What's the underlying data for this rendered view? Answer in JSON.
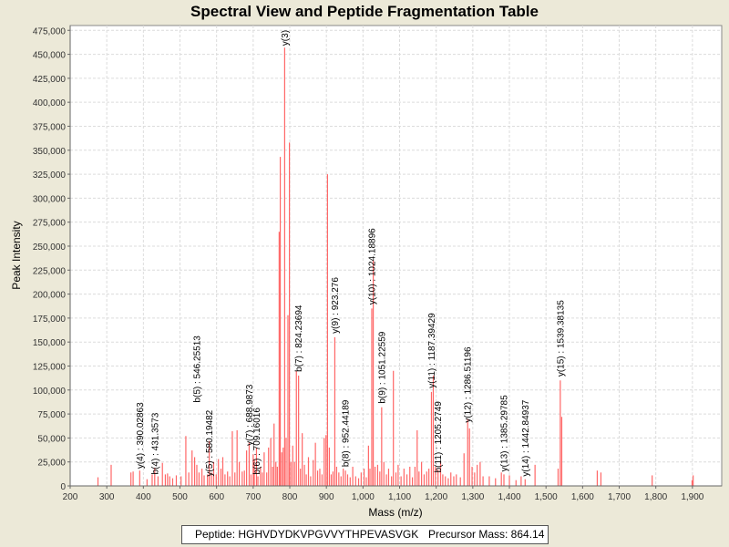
{
  "window": {
    "title": "Spectral View and Peptide Fragmentation Table"
  },
  "info": {
    "peptide_label": "Peptide: HGHVDYDKVPGVVYTHPEVASVGK",
    "precursor_label": "Precursor Mass: 864.14"
  },
  "colors": {
    "peak": "#ff6666",
    "annotation": "#000000",
    "plot_bg": "#ffffff",
    "window_bg": "#ece9d8"
  },
  "chart_data": {
    "type": "bar",
    "title": "Spectral View and Peptide Fragmentation Table",
    "xlabel": "Mass (m/z)",
    "ylabel": "Peak Intensity",
    "xlim": [
      200,
      1980
    ],
    "ylim": [
      0,
      480000
    ],
    "x_ticks": [
      200,
      300,
      400,
      500,
      600,
      700,
      800,
      900,
      1000,
      1100,
      1200,
      1300,
      1400,
      1500,
      1600,
      1700,
      1800,
      1900
    ],
    "x_tick_labels": [
      "200",
      "300",
      "400",
      "500",
      "600",
      "700",
      "800",
      "900",
      "1,000",
      "1,100",
      "1,200",
      "1,300",
      "1,400",
      "1,500",
      "1,600",
      "1,700",
      "1,800",
      "1,900"
    ],
    "y_ticks": [
      0,
      25000,
      50000,
      75000,
      100000,
      125000,
      150000,
      175000,
      200000,
      225000,
      250000,
      275000,
      300000,
      325000,
      350000,
      375000,
      400000,
      425000,
      450000,
      475000
    ],
    "y_tick_labels": [
      "0",
      "25,000",
      "50,000",
      "75,000",
      "100,000",
      "125,000",
      "150,000",
      "175,000",
      "200,000",
      "225,000",
      "250,000",
      "275,000",
      "300,000",
      "325,000",
      "350,000",
      "375,000",
      "400,000",
      "425,000",
      "450,000",
      "475,000"
    ],
    "grid": true,
    "peaks": [
      {
        "mz": 276,
        "i": 9000
      },
      {
        "mz": 312,
        "i": 22000
      },
      {
        "mz": 366,
        "i": 14000
      },
      {
        "mz": 372,
        "i": 15000
      },
      {
        "mz": 390,
        "i": 16000
      },
      {
        "mz": 410,
        "i": 7000
      },
      {
        "mz": 424,
        "i": 12000
      },
      {
        "mz": 431,
        "i": 19000
      },
      {
        "mz": 440,
        "i": 10000
      },
      {
        "mz": 452,
        "i": 24000
      },
      {
        "mz": 460,
        "i": 12000
      },
      {
        "mz": 466,
        "i": 13000
      },
      {
        "mz": 472,
        "i": 10000
      },
      {
        "mz": 480,
        "i": 8000
      },
      {
        "mz": 490,
        "i": 11000
      },
      {
        "mz": 503,
        "i": 10000
      },
      {
        "mz": 516,
        "i": 52000
      },
      {
        "mz": 524,
        "i": 14000
      },
      {
        "mz": 533,
        "i": 37000
      },
      {
        "mz": 540,
        "i": 30000
      },
      {
        "mz": 546,
        "i": 22000
      },
      {
        "mz": 552,
        "i": 14000
      },
      {
        "mz": 560,
        "i": 18000
      },
      {
        "mz": 566,
        "i": 11000
      },
      {
        "mz": 575,
        "i": 12000
      },
      {
        "mz": 580,
        "i": 47000
      },
      {
        "mz": 586,
        "i": 14000
      },
      {
        "mz": 592,
        "i": 25000
      },
      {
        "mz": 599,
        "i": 12000
      },
      {
        "mz": 605,
        "i": 28000
      },
      {
        "mz": 612,
        "i": 18000
      },
      {
        "mz": 617,
        "i": 30000
      },
      {
        "mz": 623,
        "i": 12000
      },
      {
        "mz": 630,
        "i": 15000
      },
      {
        "mz": 636,
        "i": 10000
      },
      {
        "mz": 643,
        "i": 57000
      },
      {
        "mz": 650,
        "i": 14000
      },
      {
        "mz": 656,
        "i": 58000
      },
      {
        "mz": 662,
        "i": 25000
      },
      {
        "mz": 670,
        "i": 15000
      },
      {
        "mz": 676,
        "i": 16000
      },
      {
        "mz": 682,
        "i": 37000
      },
      {
        "mz": 689,
        "i": 45000
      },
      {
        "mz": 694,
        "i": 12000
      },
      {
        "mz": 700,
        "i": 33000
      },
      {
        "mz": 703,
        "i": 28000
      },
      {
        "mz": 709,
        "i": 40000
      },
      {
        "mz": 713,
        "i": 10000
      },
      {
        "mz": 720,
        "i": 20000
      },
      {
        "mz": 725,
        "i": 14000
      },
      {
        "mz": 730,
        "i": 35000
      },
      {
        "mz": 737,
        "i": 14000
      },
      {
        "mz": 742,
        "i": 40000
      },
      {
        "mz": 748,
        "i": 50000
      },
      {
        "mz": 753,
        "i": 20000
      },
      {
        "mz": 757,
        "i": 65000
      },
      {
        "mz": 762,
        "i": 25000
      },
      {
        "mz": 766,
        "i": 20000
      },
      {
        "mz": 771,
        "i": 265000
      },
      {
        "mz": 774,
        "i": 343000
      },
      {
        "mz": 778,
        "i": 35000
      },
      {
        "mz": 782,
        "i": 40000
      },
      {
        "mz": 786,
        "i": 457000
      },
      {
        "mz": 790,
        "i": 50000
      },
      {
        "mz": 795,
        "i": 178000
      },
      {
        "mz": 799,
        "i": 358000
      },
      {
        "mz": 803,
        "i": 25000
      },
      {
        "mz": 808,
        "i": 42000
      },
      {
        "mz": 813,
        "i": 25000
      },
      {
        "mz": 818,
        "i": 120000
      },
      {
        "mz": 824,
        "i": 115000
      },
      {
        "mz": 829,
        "i": 18000
      },
      {
        "mz": 834,
        "i": 55000
      },
      {
        "mz": 840,
        "i": 22000
      },
      {
        "mz": 845,
        "i": 12000
      },
      {
        "mz": 851,
        "i": 30000
      },
      {
        "mz": 857,
        "i": 10000
      },
      {
        "mz": 864,
        "i": 27000
      },
      {
        "mz": 870,
        "i": 45000
      },
      {
        "mz": 876,
        "i": 16000
      },
      {
        "mz": 882,
        "i": 18000
      },
      {
        "mz": 888,
        "i": 12000
      },
      {
        "mz": 894,
        "i": 50000
      },
      {
        "mz": 899,
        "i": 53000
      },
      {
        "mz": 903,
        "i": 325000
      },
      {
        "mz": 908,
        "i": 40000
      },
      {
        "mz": 913,
        "i": 12000
      },
      {
        "mz": 918,
        "i": 15000
      },
      {
        "mz": 923,
        "i": 155000
      },
      {
        "mz": 928,
        "i": 20000
      },
      {
        "mz": 934,
        "i": 14000
      },
      {
        "mz": 940,
        "i": 10000
      },
      {
        "mz": 946,
        "i": 18000
      },
      {
        "mz": 952,
        "i": 16000
      },
      {
        "mz": 958,
        "i": 12000
      },
      {
        "mz": 965,
        "i": 9000
      },
      {
        "mz": 972,
        "i": 20000
      },
      {
        "mz": 980,
        "i": 10000
      },
      {
        "mz": 988,
        "i": 8000
      },
      {
        "mz": 995,
        "i": 14000
      },
      {
        "mz": 1003,
        "i": 18000
      },
      {
        "mz": 1009,
        "i": 9000
      },
      {
        "mz": 1015,
        "i": 42000
      },
      {
        "mz": 1019,
        "i": 18000
      },
      {
        "mz": 1024,
        "i": 185000
      },
      {
        "mz": 1028,
        "i": 235000
      },
      {
        "mz": 1033,
        "i": 20000
      },
      {
        "mz": 1040,
        "i": 22000
      },
      {
        "mz": 1046,
        "i": 15000
      },
      {
        "mz": 1051,
        "i": 82000
      },
      {
        "mz": 1057,
        "i": 25000
      },
      {
        "mz": 1064,
        "i": 12000
      },
      {
        "mz": 1070,
        "i": 18000
      },
      {
        "mz": 1078,
        "i": 10000
      },
      {
        "mz": 1083,
        "i": 120000
      },
      {
        "mz": 1090,
        "i": 14000
      },
      {
        "mz": 1096,
        "i": 22000
      },
      {
        "mz": 1104,
        "i": 10000
      },
      {
        "mz": 1112,
        "i": 18000
      },
      {
        "mz": 1120,
        "i": 12000
      },
      {
        "mz": 1128,
        "i": 20000
      },
      {
        "mz": 1135,
        "i": 9000
      },
      {
        "mz": 1142,
        "i": 20000
      },
      {
        "mz": 1148,
        "i": 58000
      },
      {
        "mz": 1153,
        "i": 15000
      },
      {
        "mz": 1160,
        "i": 25000
      },
      {
        "mz": 1167,
        "i": 12000
      },
      {
        "mz": 1174,
        "i": 15000
      },
      {
        "mz": 1180,
        "i": 18000
      },
      {
        "mz": 1187,
        "i": 98000
      },
      {
        "mz": 1192,
        "i": 115000
      },
      {
        "mz": 1198,
        "i": 20000
      },
      {
        "mz": 1205,
        "i": 17000
      },
      {
        "mz": 1212,
        "i": 25000
      },
      {
        "mz": 1218,
        "i": 12000
      },
      {
        "mz": 1225,
        "i": 10000
      },
      {
        "mz": 1233,
        "i": 8000
      },
      {
        "mz": 1240,
        "i": 14000
      },
      {
        "mz": 1248,
        "i": 10000
      },
      {
        "mz": 1255,
        "i": 12000
      },
      {
        "mz": 1266,
        "i": 9000
      },
      {
        "mz": 1276,
        "i": 34000
      },
      {
        "mz": 1286,
        "i": 70000
      },
      {
        "mz": 1291,
        "i": 60000
      },
      {
        "mz": 1298,
        "i": 20000
      },
      {
        "mz": 1305,
        "i": 14000
      },
      {
        "mz": 1312,
        "i": 22000
      },
      {
        "mz": 1320,
        "i": 25000
      },
      {
        "mz": 1328,
        "i": 10000
      },
      {
        "mz": 1345,
        "i": 10000
      },
      {
        "mz": 1362,
        "i": 8000
      },
      {
        "mz": 1378,
        "i": 14000
      },
      {
        "mz": 1385,
        "i": 12000
      },
      {
        "mz": 1400,
        "i": 11000
      },
      {
        "mz": 1418,
        "i": 6000
      },
      {
        "mz": 1432,
        "i": 10000
      },
      {
        "mz": 1443,
        "i": 7000
      },
      {
        "mz": 1470,
        "i": 22000
      },
      {
        "mz": 1533,
        "i": 18000
      },
      {
        "mz": 1539,
        "i": 110000
      },
      {
        "mz": 1543,
        "i": 72000
      },
      {
        "mz": 1640,
        "i": 16000
      },
      {
        "mz": 1650,
        "i": 14000
      },
      {
        "mz": 1790,
        "i": 11000
      },
      {
        "mz": 1899,
        "i": 6000
      },
      {
        "mz": 1902,
        "i": 11000
      }
    ],
    "annotations": [
      {
        "text": "y(3)",
        "mz": 786,
        "i": 457000
      },
      {
        "text": "b(7) : 824.23694",
        "mz": 824,
        "i": 117000
      },
      {
        "text": "y(9) : 923.276",
        "mz": 923,
        "i": 157000
      },
      {
        "text": "y(10) : 1024.18896",
        "mz": 1024,
        "i": 187000
      },
      {
        "text": "b(9) : 1051.22559",
        "mz": 1051,
        "i": 84000
      },
      {
        "text": "b(8) : 952.44189",
        "mz": 952,
        "i": 18000
      },
      {
        "text": "y(11) : 1187.39429",
        "mz": 1187,
        "i": 100000
      },
      {
        "text": "b(11) : 1205.2749",
        "mz": 1205,
        "i": 12000
      },
      {
        "text": "y(12) : 1286.51196",
        "mz": 1286,
        "i": 64000
      },
      {
        "text": "y(13) : 1385.29785",
        "mz": 1385,
        "i": 13000
      },
      {
        "text": "y(14) : 1442.84937",
        "mz": 1443,
        "i": 8000
      },
      {
        "text": "y(15) : 1539.38135",
        "mz": 1539,
        "i": 112000
      },
      {
        "text": "y(4) : 390.02863",
        "mz": 390,
        "i": 16000
      },
      {
        "text": "b(4) : 431.3573",
        "mz": 431,
        "i": 10000
      },
      {
        "text": "b(5) : 546.25513",
        "mz": 546,
        "i": 85000
      },
      {
        "text": "y(5) : 580.19482",
        "mz": 580,
        "i": 8000
      },
      {
        "text": "y(7) : 688.9873",
        "mz": 689,
        "i": 40000
      },
      {
        "text": "b(6) : 709.16016",
        "mz": 709,
        "i": 10000
      }
    ]
  }
}
